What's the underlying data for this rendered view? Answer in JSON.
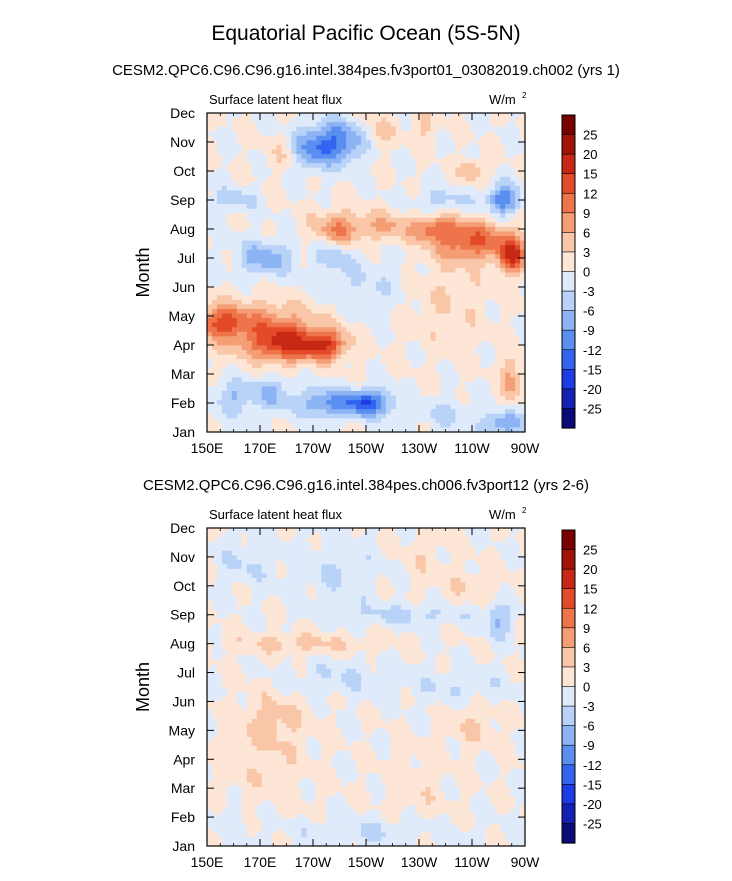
{
  "page": {
    "title": "Equatorial Pacific Ocean (5S-5N)"
  },
  "chart_data": [
    {
      "type": "heatmap",
      "panel_title": "CESM2.QPC6.C96.C96.g16.intel.384pes.fv3port01_03082019.ch002 (yrs 1)",
      "left_label": "Surface latent heat flux",
      "right_label": "W/m",
      "right_label_sup": "2",
      "ylabel": "Month",
      "xlabel": "",
      "y_ticks": [
        "Jan",
        "Feb",
        "Mar",
        "Apr",
        "May",
        "Jun",
        "Jul",
        "Aug",
        "Sep",
        "Oct",
        "Nov",
        "Dec"
      ],
      "x_ticks": [
        "150E",
        "170E",
        "170W",
        "150W",
        "130W",
        "110W",
        "90W"
      ],
      "x_tick_lon": [
        150,
        170,
        190,
        210,
        230,
        250,
        270
      ],
      "xlim": [
        150,
        270
      ],
      "ylim": [
        1,
        12
      ],
      "colorbar_levels": [
        "25",
        "20",
        "15",
        "12",
        "9",
        "6",
        "3",
        "0",
        "-3",
        "-6",
        "-9",
        "-12",
        "-15",
        "-20",
        "-25"
      ],
      "blobs": [
        {
          "lon": 170,
          "month": 4.6,
          "value": 9,
          "rx": 22,
          "ry": 0.9
        },
        {
          "lon": 180,
          "month": 4.0,
          "value": 12,
          "rx": 12,
          "ry": 0.6
        },
        {
          "lon": 195,
          "month": 4.0,
          "value": 12,
          "rx": 8,
          "ry": 0.5
        },
        {
          "lon": 155,
          "month": 4.8,
          "value": 9,
          "rx": 8,
          "ry": 0.5
        },
        {
          "lon": 200,
          "month": 8.0,
          "value": 9,
          "rx": 10,
          "ry": 0.6
        },
        {
          "lon": 218,
          "month": 8.1,
          "value": 6,
          "rx": 8,
          "ry": 0.5
        },
        {
          "lon": 250,
          "month": 7.6,
          "value": 12,
          "rx": 14,
          "ry": 0.7
        },
        {
          "lon": 265,
          "month": 7.1,
          "value": 15,
          "rx": 5,
          "ry": 0.6
        },
        {
          "lon": 235,
          "month": 8.0,
          "value": 9,
          "rx": 8,
          "ry": 0.4
        },
        {
          "lon": 250,
          "month": 10.0,
          "value": 6,
          "rx": 5,
          "ry": 0.4
        },
        {
          "lon": 180,
          "month": 10.6,
          "value": 4,
          "rx": 7,
          "ry": 0.6
        },
        {
          "lon": 215,
          "month": 11.3,
          "value": 5,
          "rx": 6,
          "ry": 0.6
        },
        {
          "lon": 232,
          "month": 11.5,
          "value": 4,
          "rx": 5,
          "ry": 0.5
        },
        {
          "lon": 198,
          "month": 11.0,
          "value": -12,
          "rx": 12,
          "ry": 0.7
        },
        {
          "lon": 188,
          "month": 10.6,
          "value": -6,
          "rx": 8,
          "ry": 0.6
        },
        {
          "lon": 210,
          "month": 2.0,
          "value": -15,
          "rx": 10,
          "ry": 0.45
        },
        {
          "lon": 193,
          "month": 2.0,
          "value": -9,
          "rx": 8,
          "ry": 0.5
        },
        {
          "lon": 175,
          "month": 2.3,
          "value": -6,
          "rx": 8,
          "ry": 0.6
        },
        {
          "lon": 160,
          "month": 2.2,
          "value": -6,
          "rx": 8,
          "ry": 0.6
        },
        {
          "lon": 172,
          "month": 7.0,
          "value": -8,
          "rx": 10,
          "ry": 0.6
        },
        {
          "lon": 198,
          "month": 7.1,
          "value": -5,
          "rx": 7,
          "ry": 0.5
        },
        {
          "lon": 262,
          "month": 9.0,
          "value": -12,
          "rx": 6,
          "ry": 0.5
        },
        {
          "lon": 240,
          "month": 9.0,
          "value": -4,
          "rx": 12,
          "ry": 0.4
        },
        {
          "lon": 160,
          "month": 9.0,
          "value": -5,
          "rx": 8,
          "ry": 0.4
        },
        {
          "lon": 262,
          "month": 1.3,
          "value": -9,
          "rx": 8,
          "ry": 0.4
        },
        {
          "lon": 240,
          "month": 1.6,
          "value": -4,
          "rx": 10,
          "ry": 0.5
        },
        {
          "lon": 265,
          "month": 2.8,
          "value": 7,
          "rx": 4,
          "ry": 0.8
        },
        {
          "lon": 240,
          "month": 5.5,
          "value": 3,
          "rx": 16,
          "ry": 1.6
        },
        {
          "lon": 210,
          "month": 6.0,
          "value": -3,
          "rx": 18,
          "ry": 1.0
        }
      ]
    },
    {
      "type": "heatmap",
      "panel_title": "CESM2.QPC6.C96.C96.g16.intel.384pes.ch006.fv3port12 (yrs 2-6)",
      "left_label": "Surface latent heat flux",
      "right_label": "W/m",
      "right_label_sup": "2",
      "ylabel": "Month",
      "xlabel": "",
      "y_ticks": [
        "Jan",
        "Feb",
        "Mar",
        "Apr",
        "May",
        "Jun",
        "Jul",
        "Aug",
        "Sep",
        "Oct",
        "Nov",
        "Dec"
      ],
      "x_ticks": [
        "150E",
        "170E",
        "170W",
        "150W",
        "130W",
        "110W",
        "90W"
      ],
      "x_tick_lon": [
        150,
        170,
        190,
        210,
        230,
        250,
        270
      ],
      "xlim": [
        150,
        270
      ],
      "ylim": [
        1,
        12
      ],
      "colorbar_levels": [
        "25",
        "20",
        "15",
        "12",
        "9",
        "6",
        "3",
        "0",
        "-3",
        "-6",
        "-9",
        "-12",
        "-15",
        "-20",
        "-25"
      ],
      "blobs": [
        {
          "lon": 185,
          "month": 8.0,
          "value": 4,
          "rx": 28,
          "ry": 0.35
        },
        {
          "lon": 175,
          "month": 5.3,
          "value": 4,
          "rx": 12,
          "ry": 1.0
        },
        {
          "lon": 170,
          "month": 3.5,
          "value": 2,
          "rx": 18,
          "ry": 1.6
        },
        {
          "lon": 250,
          "month": 10.0,
          "value": 3,
          "rx": 10,
          "ry": 0.5
        },
        {
          "lon": 232,
          "month": 11.0,
          "value": 2,
          "rx": 8,
          "ry": 1.0
        },
        {
          "lon": 250,
          "month": 5.2,
          "value": 3,
          "rx": 10,
          "ry": 0.8
        },
        {
          "lon": 230,
          "month": 3.0,
          "value": 2,
          "rx": 12,
          "ry": 1.4
        },
        {
          "lon": 225,
          "month": 9.0,
          "value": -4,
          "rx": 24,
          "ry": 0.35
        },
        {
          "lon": 260,
          "month": 8.8,
          "value": -6,
          "rx": 5,
          "ry": 0.6
        },
        {
          "lon": 200,
          "month": 10.5,
          "value": -3,
          "rx": 14,
          "ry": 1.2
        },
        {
          "lon": 165,
          "month": 10.8,
          "value": -3,
          "rx": 12,
          "ry": 0.8
        },
        {
          "lon": 200,
          "month": 6.8,
          "value": -3,
          "rx": 20,
          "ry": 0.6
        },
        {
          "lon": 245,
          "month": 6.5,
          "value": -3,
          "rx": 18,
          "ry": 0.6
        },
        {
          "lon": 210,
          "month": 1.5,
          "value": -3,
          "rx": 30,
          "ry": 0.5
        },
        {
          "lon": 160,
          "month": 2.0,
          "value": -2,
          "rx": 10,
          "ry": 0.6
        }
      ]
    }
  ]
}
